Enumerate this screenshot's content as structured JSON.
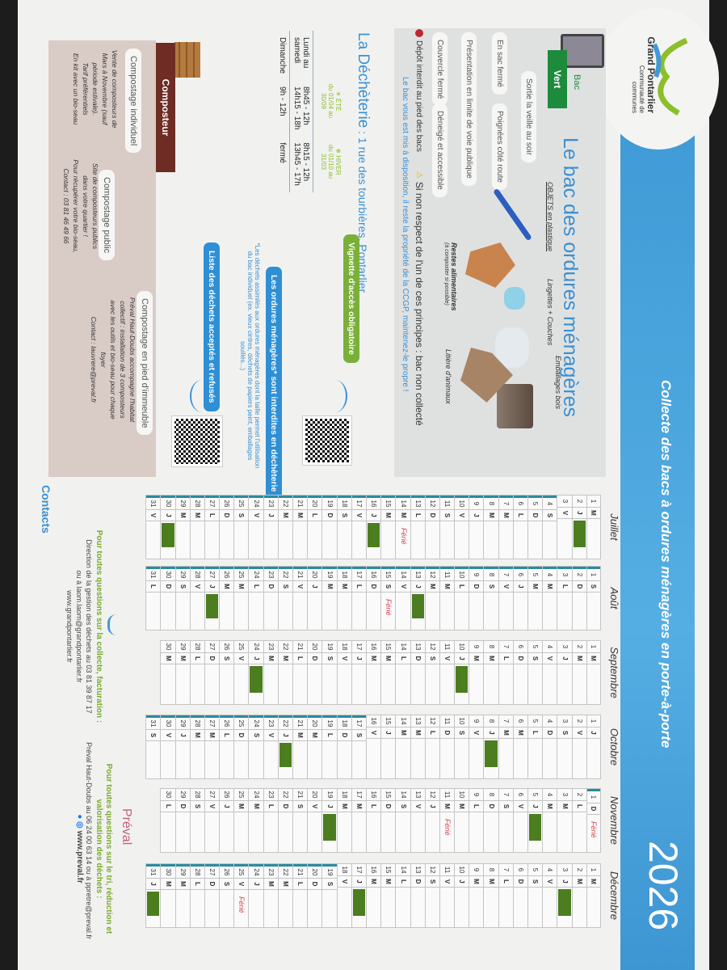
{
  "header": {
    "logo": {
      "name": "Grand Pontarlier",
      "subtitle": "Communauté de communes"
    },
    "title": "Collecte des bacs à ordures ménagères en porte-à-porte",
    "year": "2026",
    "brand_color": "#3f9ad6"
  },
  "bac": {
    "label": "Bac",
    "tag": "Vert",
    "title": "Le bac des ordures ménagères",
    "rules": [
      "Sortie la veille au soir",
      "En sac fermé",
      "Poignées côté route",
      "Présentation en limite de voie publique",
      "Couvercle fermé",
      "Déneigé et accessible"
    ],
    "items": [
      {
        "label": "OBJETS en plastique",
        "icon": "toothbrush-icon"
      },
      {
        "label": "Lingettes + Couches",
        "icon": "wipes-icon"
      },
      {
        "label": "Emballages bois",
        "icon": "wood-packaging-icon"
      },
      {
        "label": "Restes alimentaires",
        "note": "(à composter si possible)",
        "icon": "food-scraps-icon"
      },
      {
        "label": "Litière d'animaux",
        "icon": "litter-icon"
      }
    ],
    "forbidden": "Dépôt interdit au pied des bacs",
    "warning": "Si non respect de l'un de ces principes : bac non collecté",
    "ownership": "Le bac vous est mis à disposition, il reste la propriété de la CCGP, maintenez-le propre !"
  },
  "decheterie": {
    "title": "La Déchèterie",
    "address": " : 1 rue des tourbières, Pontarlier",
    "seasons": [
      {
        "name": "ÉTÉ",
        "period": "du 01/04 au 30/09",
        "icon": "sun-icon"
      },
      {
        "name": "HIVER",
        "period": "du 01/10 au 31/03",
        "icon": "snowflake-icon"
      }
    ],
    "hours": [
      {
        "day": "Lundi au samedi",
        "ete": [
          "8h45 - 12h",
          "14h15 - 18h"
        ],
        "hiver": [
          "8h15 - 12h",
          "13h45 - 17h"
        ]
      },
      {
        "day": "Dimanche",
        "ete": [
          "9h - 12h"
        ],
        "hiver": [
          "fermé"
        ]
      }
    ],
    "vignette": "Vignette d'accès obligatoire",
    "interdites": "Les ordures ménagères* sont interdites en déchèterie",
    "interdites_note": "*Les déchets assimilés aux ordures ménagères dont la taille permet l'utilisation du bac individuel (ex. vieux cintres, déchets de papiers peint, emballages souillés...)",
    "liste": "Liste des déchets acceptés et refusés"
  },
  "composteur": {
    "tab": "Composteur",
    "individuel": {
      "title": "Compostage individuel",
      "text": [
        "Vente de composteurs de",
        "Mars à Novembre (sauf",
        "période estivale).",
        "Tarif préférentiels",
        "En kit avec un bio-seau"
      ]
    },
    "public": {
      "title": "Compostage public",
      "text": [
        "Site de composteurs publics",
        "dans votre quartier !",
        "Pour récupérer votre bio-seau,",
        "Contact : 03 81 46 49 66"
      ]
    },
    "immeuble": {
      "title": "Compostage en pied d'immeuble",
      "text": [
        "Préval Haut-Doubs accompagne l'habitat",
        "collectif : installation de 3 composteurs",
        "avec les outils et bio-seau pour chaque",
        "foyer",
        "Contact : lauvrere@preval.fr"
      ]
    }
  },
  "calendar": {
    "collection_color": "#4c7d1f",
    "holiday_label": "Férié",
    "months": [
      {
        "name": "Juillet",
        "weekdays": "MJVSDLMMJVSDLMMJVSDLMMJVSDLMMJV",
        "collection": [
          2,
          16,
          30
        ],
        "holidays": [
          14
        ],
        "school_holidays": [
          4,
          31
        ]
      },
      {
        "name": "Août",
        "weekdays": "SDLMMJVSDLMMJVSDLMMJVSDLMMJVSDL",
        "collection": [
          13,
          27
        ],
        "holidays": [
          15
        ],
        "school_holidays": [
          1,
          31
        ]
      },
      {
        "name": "Septembre",
        "weekdays": "MMJVSDLMMJVSDLMMJVSDLMMJVSDLMM",
        "collection": [
          10,
          24
        ],
        "holidays": [],
        "school_holidays": []
      },
      {
        "name": "Octobre",
        "weekdays": "JVSDLMMJVSDLMMJVSDLMMJVSDLMMJVS",
        "collection": [
          8,
          22
        ],
        "holidays": [],
        "school_holidays": [
          17,
          31
        ]
      },
      {
        "name": "Novembre",
        "weekdays": "DLMMJVSDLMMJVSDLMMJVSDLMMJVSDL",
        "collection": [
          5,
          19
        ],
        "holidays": [
          1,
          11
        ],
        "school_holidays": [
          1,
          1
        ]
      },
      {
        "name": "Décembre",
        "weekdays": "MMJVSDLMMJVSDLMMJVSDLMMJVSDLMMJ",
        "collection": [
          3,
          17,
          31
        ],
        "holidays": [
          25
        ],
        "school_holidays": [
          19,
          31
        ]
      }
    ]
  },
  "contacts": {
    "title": "Contacts",
    "collecte": {
      "heading": "Pour toutes questions sur la collecte, facturation :",
      "lines": [
        "Direction de la gestion des déchets au 03 81 39 87 17",
        "ou à laom.laom@grandpontarlier.fr",
        "www.grandpontarlier.fr"
      ]
    },
    "tri": {
      "logo": "Préval",
      "heading": "Pour toutes questions sur le tri, réduction et valorisation des déchets :",
      "lines": [
        "Préval Haut-Doubs au 06 24 00 63 14 ou à ppretre@preval.fr"
      ],
      "website": "www.preval.fr",
      "social": [
        "facebook-icon",
        "instagram-icon"
      ]
    }
  }
}
